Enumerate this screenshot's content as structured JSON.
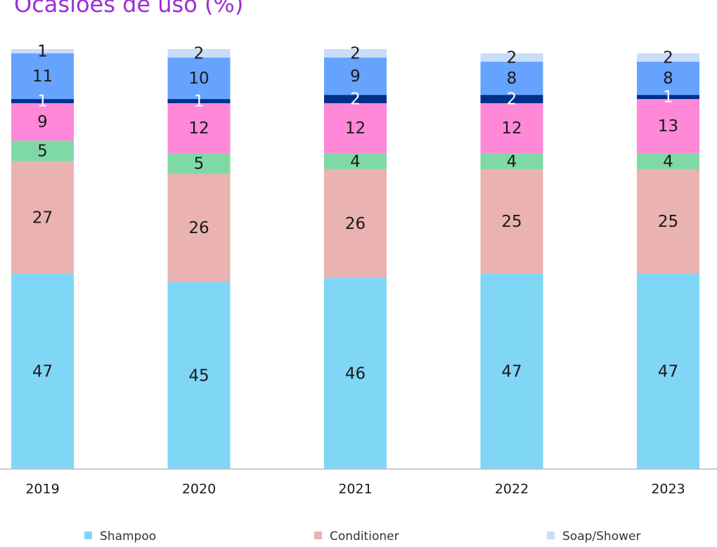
{
  "chart_data": {
    "type": "stacked_bar",
    "title": "Ocasiões de uso (%)",
    "categories": [
      "2019",
      "2020",
      "2021",
      "2022",
      "2023"
    ],
    "series": [
      {
        "name": "Shampoo",
        "color": "#7fd6f5",
        "values": [
          47,
          45,
          46,
          47,
          47
        ]
      },
      {
        "name": "Conditioner",
        "color": "#eab2b0",
        "values": [
          27,
          26,
          26,
          25,
          25
        ]
      },
      {
        "color": "#7fd9a6",
        "values": [
          5,
          5,
          4,
          4,
          4
        ]
      },
      {
        "color": "#ff88d8",
        "values": [
          9,
          12,
          12,
          12,
          13
        ]
      },
      {
        "color": "#00308a",
        "values": [
          1,
          1,
          2,
          2,
          1
        ]
      },
      {
        "color": "#66a3ff",
        "values": [
          11,
          10,
          9,
          8,
          8
        ]
      },
      {
        "name": "Soap/Shower",
        "color": "#c9dcfa",
        "values": [
          1,
          2,
          2,
          2,
          2
        ]
      }
    ]
  }
}
